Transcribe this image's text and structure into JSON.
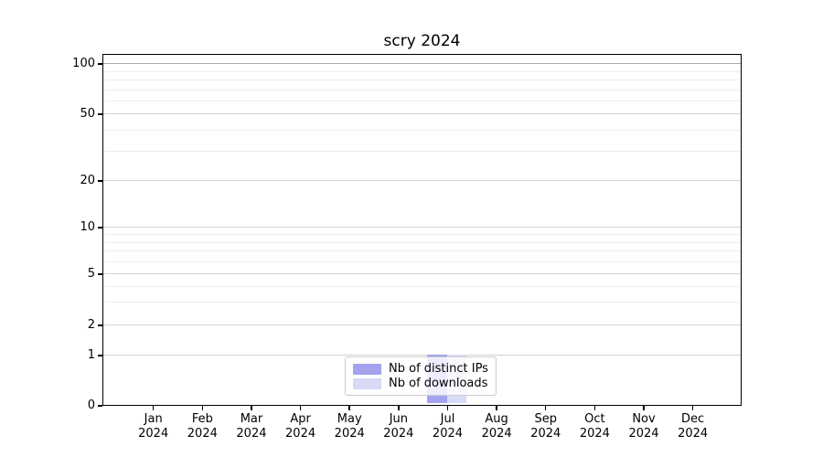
{
  "chart_data": {
    "type": "bar",
    "title": "scry 2024",
    "categories": [
      "Jan",
      "Feb",
      "Mar",
      "Apr",
      "May",
      "Jun",
      "Jul",
      "Aug",
      "Sep",
      "Oct",
      "Nov",
      "Dec"
    ],
    "category_year": "2024",
    "series": [
      {
        "name": "Nb of distinct IPs",
        "color": "#a3a3f0",
        "values": [
          0,
          0,
          0,
          0,
          0,
          0,
          1,
          0,
          0,
          0,
          0,
          0
        ]
      },
      {
        "name": "Nb of downloads",
        "color": "#d9d9f8",
        "values": [
          0,
          0,
          0,
          0,
          0,
          0,
          1,
          0,
          0,
          0,
          0,
          0
        ]
      }
    ],
    "yscale": "symlog",
    "yticks": [
      100,
      50,
      20,
      10,
      5,
      2,
      1,
      0
    ],
    "ylim": [
      0,
      115
    ],
    "xlabel": "",
    "ylabel": "",
    "grid": true,
    "legend_position": "lower center"
  }
}
